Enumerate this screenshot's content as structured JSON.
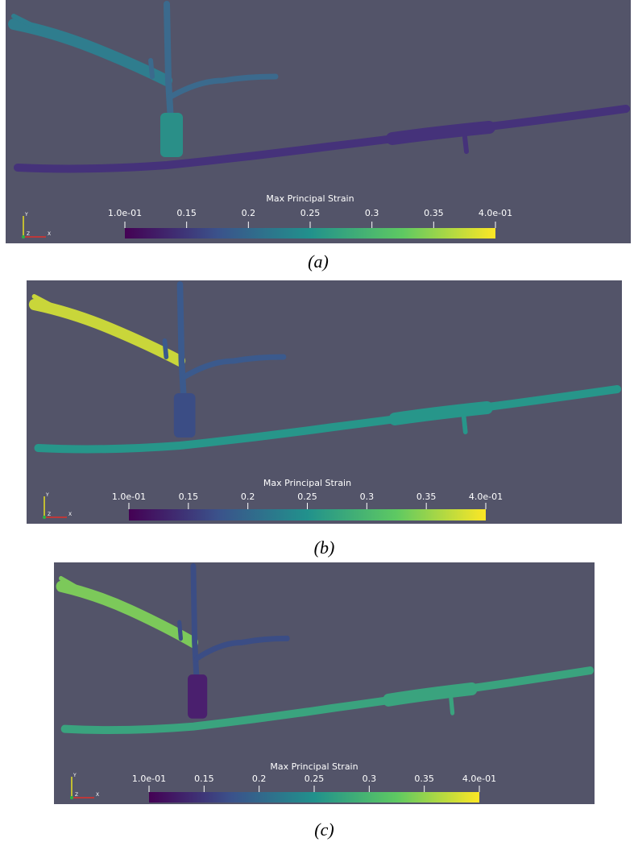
{
  "panels": [
    {
      "caption": "(a)",
      "colorbar": {
        "title": "Max Principal Strain",
        "range": [
          0.1,
          0.4
        ],
        "ticks": [
          {
            "value": 0.1,
            "label": "1.0e-01"
          },
          0.15,
          0.2,
          0.25,
          0.3,
          0.35,
          {
            "value": 0.4,
            "label": "4.0e-01"
          }
        ]
      },
      "axes": {
        "y": "Y",
        "z": "Z",
        "x": "X"
      }
    },
    {
      "caption": "(b)",
      "colorbar": {
        "title": "Max Principal Strain",
        "range": [
          0.1,
          0.4
        ],
        "ticks": [
          {
            "value": 0.1,
            "label": "1.0e-01"
          },
          0.15,
          0.2,
          0.25,
          0.3,
          0.35,
          {
            "value": 0.4,
            "label": "4.0e-01"
          }
        ]
      },
      "axes": {
        "y": "Y",
        "z": "Z",
        "x": "X"
      }
    },
    {
      "caption": "(c)",
      "colorbar": {
        "title": "Max Principal Strain",
        "range": [
          0.1,
          0.4
        ],
        "ticks": [
          {
            "value": 0.1,
            "label": "1.0e-01"
          },
          0.15,
          0.2,
          0.25,
          0.3,
          0.35,
          {
            "value": 0.4,
            "label": "4.0e-01"
          }
        ]
      },
      "axes": {
        "y": "Y",
        "z": "Z",
        "x": "X"
      }
    }
  ]
}
